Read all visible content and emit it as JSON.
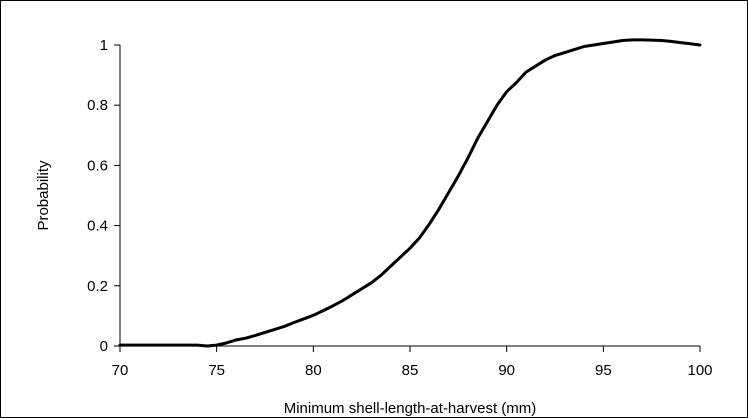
{
  "chart_data": {
    "type": "line",
    "title": "",
    "xlabel": "Minimum shell-length-at-harvest (mm)",
    "ylabel": "Probability",
    "xlim": [
      70,
      100
    ],
    "ylim": [
      0,
      1
    ],
    "grid": false,
    "legend": "none",
    "x_ticks": [
      70,
      75,
      80,
      85,
      90,
      95,
      100
    ],
    "y_ticks": [
      0,
      0.2,
      0.4,
      0.6,
      0.8,
      1
    ],
    "x_tick_labels": [
      "70",
      "75",
      "80",
      "85",
      "90",
      "95",
      "100"
    ],
    "y_tick_labels": [
      "0",
      "0.2",
      "0.4",
      "0.6",
      "0.8",
      "1"
    ],
    "series": [
      {
        "color": "#000000",
        "x": [
          70,
          71,
          72,
          73,
          74,
          74.5,
          75,
          75.5,
          76,
          76.5,
          77,
          77.5,
          78,
          78.5,
          79,
          79.5,
          80,
          80.5,
          81,
          81.5,
          82,
          82.5,
          83,
          83.5,
          84,
          84.5,
          85,
          85.5,
          86,
          86.5,
          87,
          87.5,
          88,
          88.5,
          89,
          89.5,
          90,
          90.5,
          91,
          91.5,
          92,
          92.5,
          93,
          93.5,
          94,
          94.5,
          95,
          95.5,
          96,
          96.5,
          97,
          97.5,
          98,
          98.5,
          99,
          99.5,
          100
        ],
        "y": [
          0.003,
          0.003,
          0.003,
          0.003,
          0.003,
          0.0,
          0.003,
          0.01,
          0.02,
          0.026,
          0.035,
          0.045,
          0.055,
          0.065,
          0.078,
          0.09,
          0.102,
          0.117,
          0.133,
          0.15,
          0.17,
          0.19,
          0.21,
          0.235,
          0.265,
          0.295,
          0.325,
          0.36,
          0.405,
          0.455,
          0.51,
          0.565,
          0.625,
          0.69,
          0.745,
          0.8,
          0.845,
          0.875,
          0.91,
          0.93,
          0.95,
          0.965,
          0.975,
          0.985,
          0.995,
          1.0,
          1.005,
          1.01,
          1.015,
          1.017,
          1.017,
          1.016,
          1.015,
          1.012,
          1.008,
          1.004,
          1.0
        ]
      }
    ]
  }
}
